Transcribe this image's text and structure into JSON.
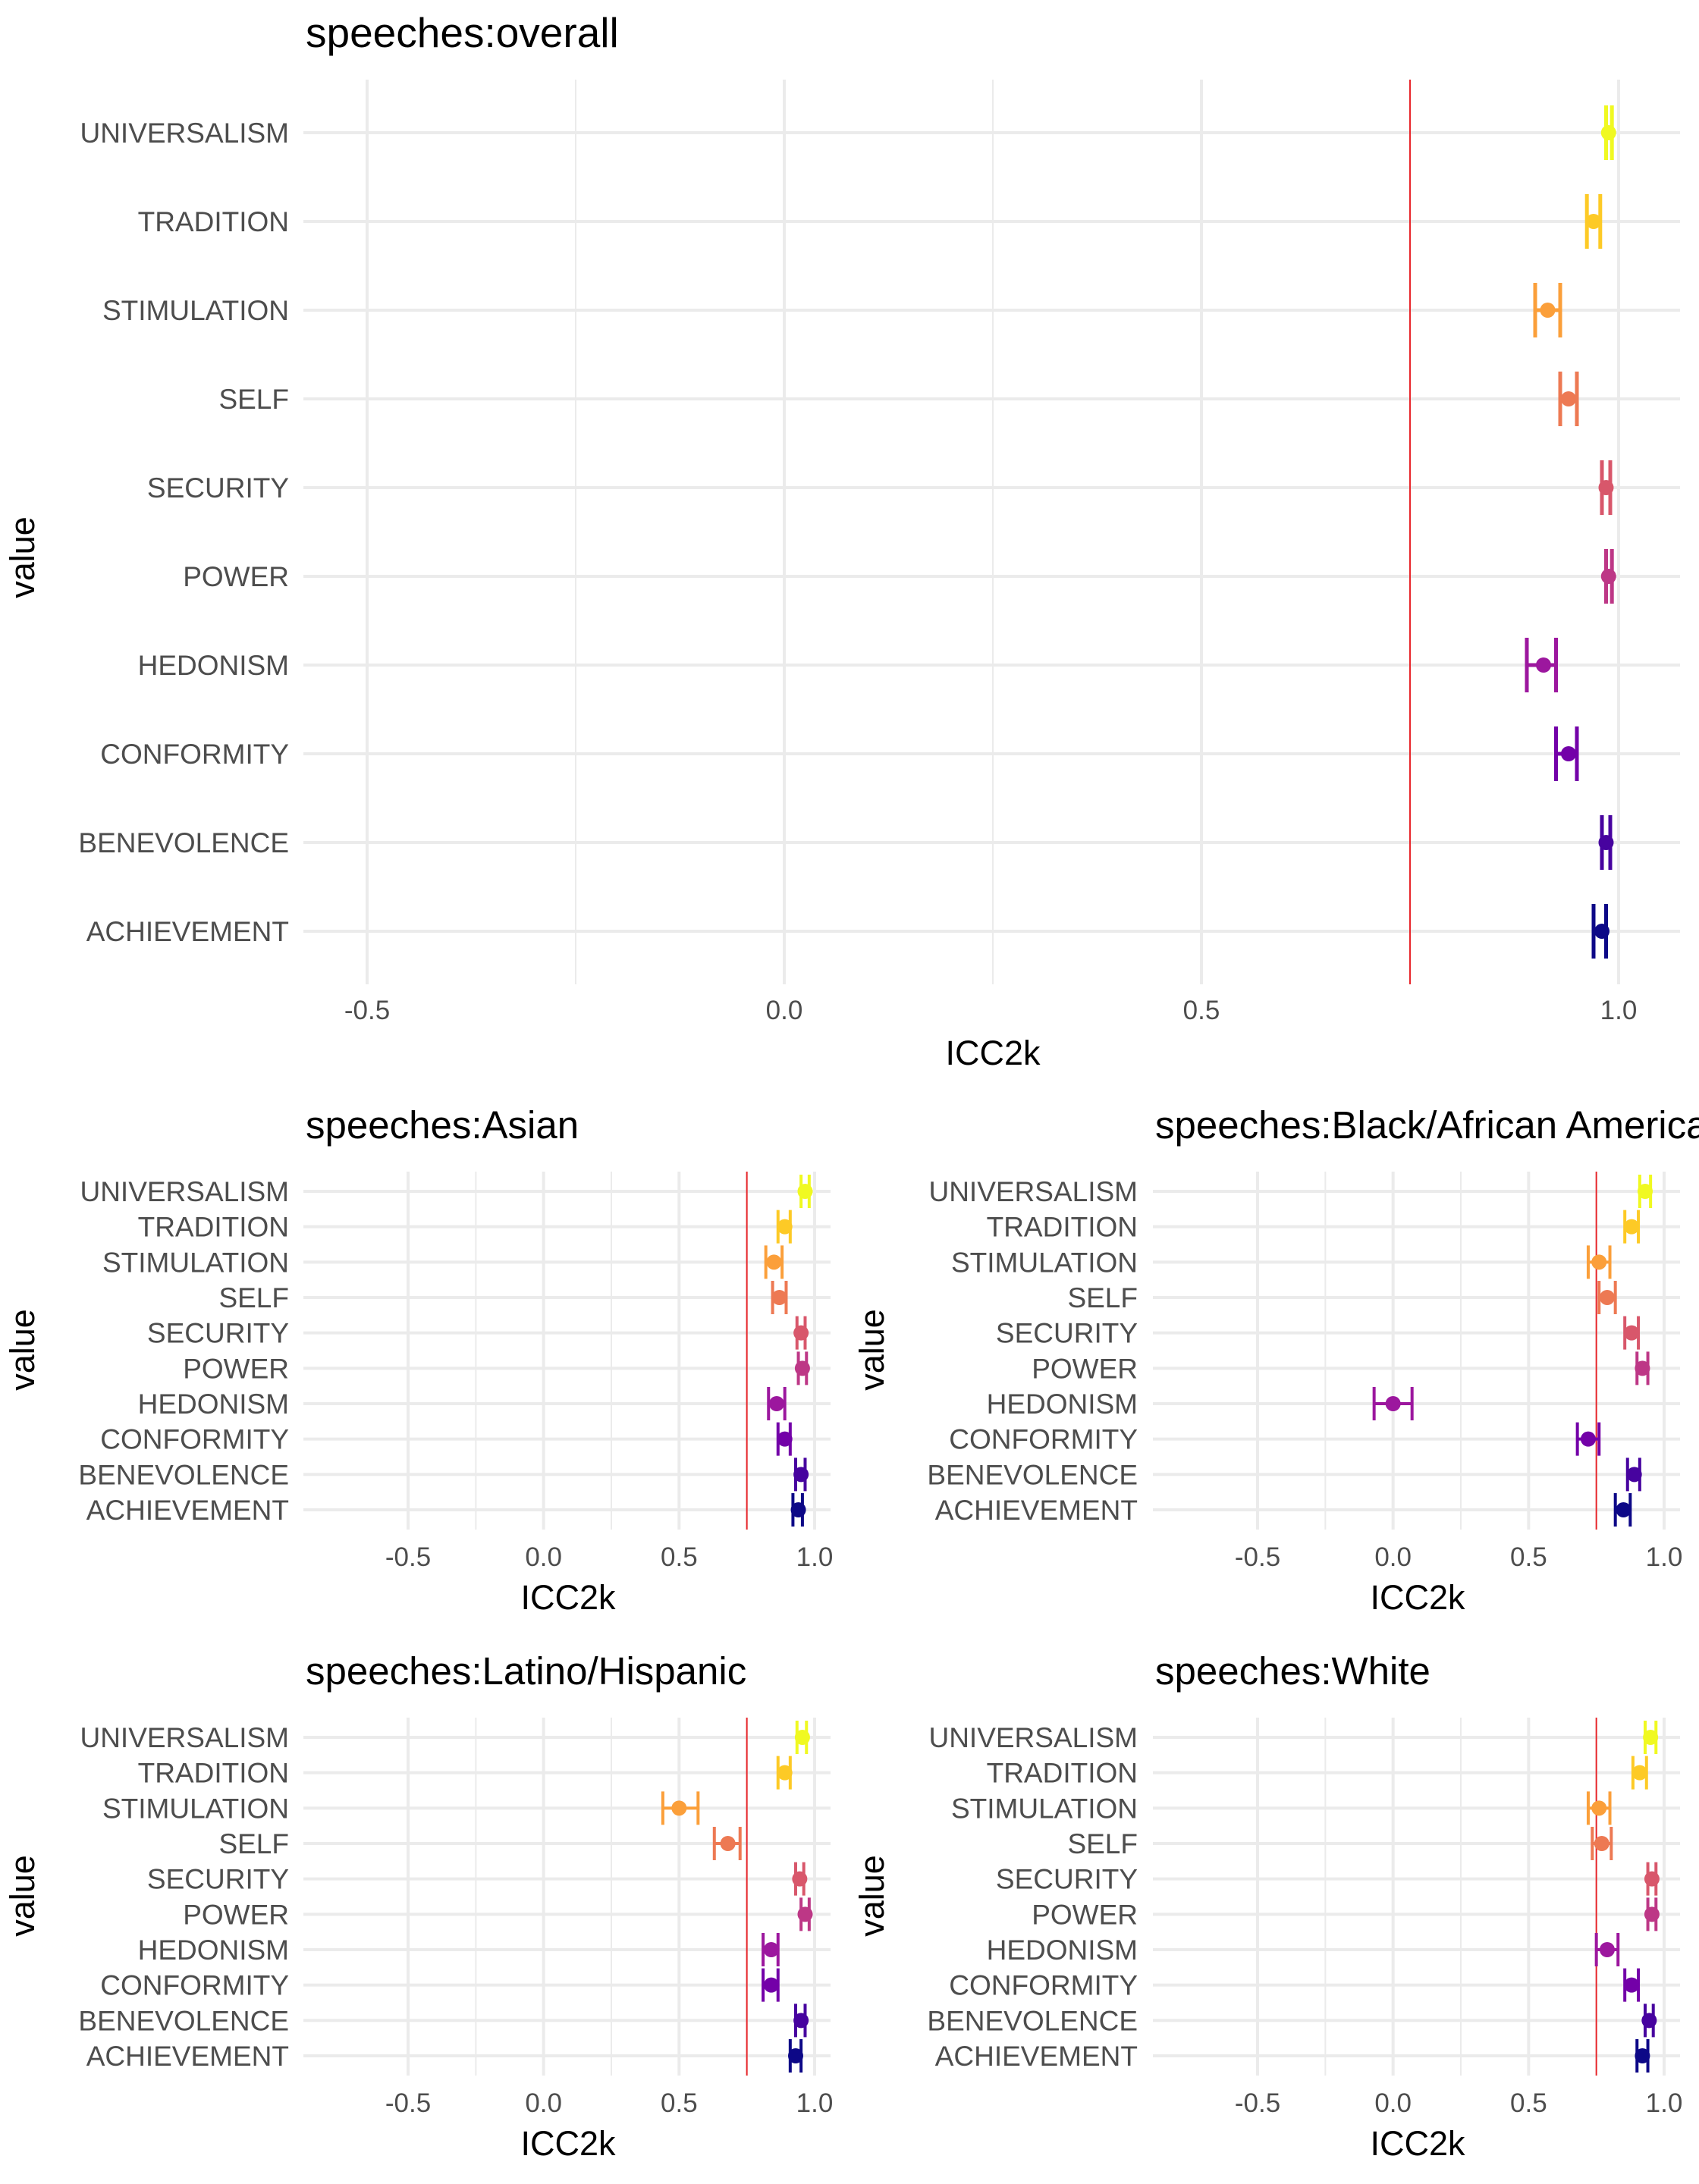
{
  "chart_data": [
    {
      "type": "errorbar",
      "title": "speeches:overall",
      "xlabel": "ICC2k",
      "ylabel": "value",
      "xlim": [
        -0.6,
        1.08
      ],
      "xticks": [
        "-0.5",
        "0.0",
        "0.5",
        "1.0"
      ],
      "threshold": 0.75,
      "grid": true,
      "categories": [
        "ACHIEVEMENT",
        "BENEVOLENCE",
        "CONFORMITY",
        "HEDONISM",
        "POWER",
        "SECURITY",
        "SELF",
        "STIMULATION",
        "TRADITION",
        "UNIVERSALISM"
      ],
      "estimates": [
        0.98,
        0.985,
        0.94,
        0.91,
        0.988,
        0.985,
        0.94,
        0.915,
        0.97,
        0.988
      ],
      "ci_low": [
        0.97,
        0.98,
        0.925,
        0.89,
        0.985,
        0.98,
        0.93,
        0.9,
        0.962,
        0.985
      ],
      "ci_high": [
        0.985,
        0.99,
        0.95,
        0.925,
        0.992,
        0.99,
        0.95,
        0.93,
        0.978,
        0.992
      ]
    },
    {
      "type": "errorbar",
      "title": "speeches:Asian",
      "xlabel": "ICC2k",
      "ylabel": "value",
      "xlim": [
        -0.6,
        1.08
      ],
      "xticks": [
        "-0.5",
        "0.0",
        "0.5",
        "1.0"
      ],
      "threshold": 0.75,
      "grid": true,
      "categories": [
        "ACHIEVEMENT",
        "BENEVOLENCE",
        "CONFORMITY",
        "HEDONISM",
        "POWER",
        "SECURITY",
        "SELF",
        "STIMULATION",
        "TRADITION",
        "UNIVERSALISM"
      ],
      "estimates": [
        0.94,
        0.95,
        0.89,
        0.86,
        0.955,
        0.95,
        0.87,
        0.85,
        0.89,
        0.965
      ],
      "ci_low": [
        0.92,
        0.93,
        0.865,
        0.83,
        0.94,
        0.935,
        0.845,
        0.82,
        0.865,
        0.95
      ],
      "ci_high": [
        0.955,
        0.965,
        0.91,
        0.89,
        0.97,
        0.965,
        0.895,
        0.88,
        0.91,
        0.98
      ]
    },
    {
      "type": "errorbar",
      "title": "speeches:Black/African American",
      "xlabel": "ICC2k",
      "ylabel": "value",
      "xlim": [
        -0.6,
        1.08
      ],
      "xticks": [
        "-0.5",
        "0.0",
        "0.5",
        "1.0"
      ],
      "threshold": 0.75,
      "grid": true,
      "categories": [
        "ACHIEVEMENT",
        "BENEVOLENCE",
        "CONFORMITY",
        "HEDONISM",
        "POWER",
        "SECURITY",
        "SELF",
        "STIMULATION",
        "TRADITION",
        "UNIVERSALISM"
      ],
      "estimates": [
        0.85,
        0.89,
        0.72,
        0.0,
        0.92,
        0.88,
        0.79,
        0.76,
        0.88,
        0.93
      ],
      "ci_low": [
        0.82,
        0.865,
        0.68,
        -0.07,
        0.9,
        0.855,
        0.76,
        0.72,
        0.855,
        0.91
      ],
      "ci_high": [
        0.875,
        0.91,
        0.76,
        0.07,
        0.94,
        0.905,
        0.82,
        0.8,
        0.905,
        0.95
      ]
    },
    {
      "type": "errorbar",
      "title": "speeches:Latino/Hispanic",
      "xlabel": "ICC2k",
      "ylabel": "value",
      "xlim": [
        -0.6,
        1.08
      ],
      "xticks": [
        "-0.5",
        "0.0",
        "0.5",
        "1.0"
      ],
      "threshold": 0.75,
      "grid": true,
      "categories": [
        "ACHIEVEMENT",
        "BENEVOLENCE",
        "CONFORMITY",
        "HEDONISM",
        "POWER",
        "SECURITY",
        "SELF",
        "STIMULATION",
        "TRADITION",
        "UNIVERSALISM"
      ],
      "estimates": [
        0.93,
        0.95,
        0.84,
        0.84,
        0.965,
        0.945,
        0.68,
        0.5,
        0.89,
        0.955
      ],
      "ci_low": [
        0.91,
        0.93,
        0.81,
        0.81,
        0.95,
        0.93,
        0.63,
        0.44,
        0.865,
        0.935
      ],
      "ci_high": [
        0.95,
        0.965,
        0.865,
        0.865,
        0.98,
        0.96,
        0.725,
        0.57,
        0.91,
        0.97
      ]
    },
    {
      "type": "errorbar",
      "title": "speeches:White",
      "xlabel": "ICC2k",
      "ylabel": "value",
      "xlim": [
        -0.6,
        1.08
      ],
      "xticks": [
        "-0.5",
        "0.0",
        "0.5",
        "1.0"
      ],
      "threshold": 0.75,
      "grid": true,
      "categories": [
        "ACHIEVEMENT",
        "BENEVOLENCE",
        "CONFORMITY",
        "HEDONISM",
        "POWER",
        "SECURITY",
        "SELF",
        "STIMULATION",
        "TRADITION",
        "UNIVERSALISM"
      ],
      "estimates": [
        0.92,
        0.945,
        0.88,
        0.79,
        0.955,
        0.955,
        0.77,
        0.76,
        0.91,
        0.95
      ],
      "ci_low": [
        0.9,
        0.93,
        0.855,
        0.75,
        0.94,
        0.94,
        0.735,
        0.72,
        0.885,
        0.93
      ],
      "ci_high": [
        0.94,
        0.96,
        0.905,
        0.83,
        0.97,
        0.97,
        0.805,
        0.8,
        0.935,
        0.97
      ]
    }
  ],
  "colors": {
    "ACHIEVEMENT": "#0d0887",
    "BENEVOLENCE": "#47039f",
    "CONFORMITY": "#7301a8",
    "HEDONISM": "#9c179e",
    "POWER": "#bd3786",
    "SECURITY": "#d8576b",
    "SELF": "#ed7953",
    "STIMULATION": "#fb9f3a",
    "TRADITION": "#fdca26",
    "UNIVERSALISM": "#f0f921",
    "threshold_line": "#e8262b",
    "grid": "#ebebeb"
  }
}
